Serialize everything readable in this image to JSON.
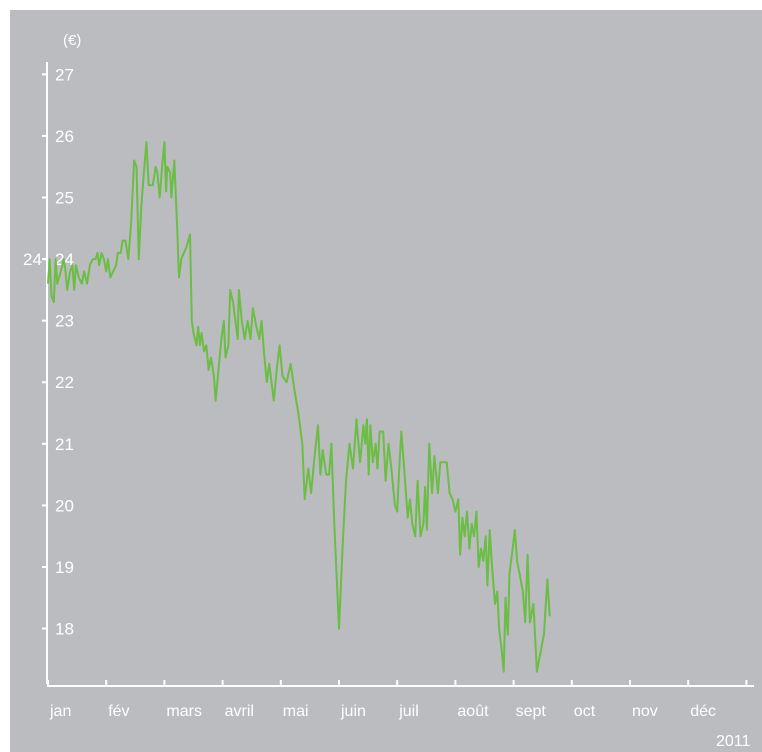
{
  "chart_data": {
    "type": "line",
    "ylabel": "(€)",
    "ylim": [
      17.1,
      27.2
    ],
    "yticks": [
      18,
      19,
      20,
      21,
      22,
      23,
      24,
      25,
      26,
      27
    ],
    "y_reference_label": "24",
    "x_categories": [
      "jan",
      "fév",
      "mars",
      "avril",
      "mai",
      "juin",
      "juil",
      "août",
      "sept",
      "oct",
      "nov",
      "déc"
    ],
    "year_label": "2011",
    "grid": false,
    "line_color": "#6cbd45",
    "background_color": "#bbbcc0",
    "series": [
      {
        "values": [
          [
            0.0,
            23.6
          ],
          [
            0.03,
            24.0
          ],
          [
            0.06,
            23.4
          ],
          [
            0.1,
            23.3
          ],
          [
            0.13,
            24.0
          ],
          [
            0.16,
            23.6
          ],
          [
            0.22,
            23.8
          ],
          [
            0.27,
            24.0
          ],
          [
            0.3,
            23.8
          ],
          [
            0.33,
            23.5
          ],
          [
            0.38,
            23.8
          ],
          [
            0.42,
            23.9
          ],
          [
            0.45,
            23.5
          ],
          [
            0.48,
            23.9
          ],
          [
            0.53,
            23.7
          ],
          [
            0.58,
            23.6
          ],
          [
            0.62,
            23.8
          ],
          [
            0.67,
            23.6
          ],
          [
            0.72,
            23.9
          ],
          [
            0.77,
            24.0
          ],
          [
            0.82,
            24.0
          ],
          [
            0.85,
            24.1
          ],
          [
            0.88,
            23.9
          ],
          [
            0.92,
            24.1
          ],
          [
            0.96,
            24.0
          ],
          [
            1.0,
            23.8
          ],
          [
            1.03,
            24.0
          ],
          [
            1.07,
            23.7
          ],
          [
            1.12,
            23.8
          ],
          [
            1.17,
            23.9
          ],
          [
            1.2,
            24.1
          ],
          [
            1.25,
            24.1
          ],
          [
            1.28,
            24.3
          ],
          [
            1.33,
            24.3
          ],
          [
            1.38,
            24.0
          ],
          [
            1.43,
            24.6
          ],
          [
            1.48,
            25.6
          ],
          [
            1.52,
            25.5
          ],
          [
            1.56,
            24.0
          ],
          [
            1.6,
            24.8
          ],
          [
            1.64,
            25.3
          ],
          [
            1.69,
            25.9
          ],
          [
            1.73,
            25.2
          ],
          [
            1.8,
            25.2
          ],
          [
            1.85,
            25.5
          ],
          [
            1.88,
            25.4
          ],
          [
            1.92,
            25.0
          ],
          [
            1.96,
            25.5
          ],
          [
            2.0,
            25.9
          ],
          [
            2.03,
            25.1
          ],
          [
            2.05,
            25.5
          ],
          [
            2.1,
            25.4
          ],
          [
            2.12,
            25.0
          ],
          [
            2.17,
            25.6
          ],
          [
            2.22,
            24.5
          ],
          [
            2.25,
            23.7
          ],
          [
            2.29,
            24.0
          ],
          [
            2.38,
            24.2
          ],
          [
            2.44,
            24.4
          ],
          [
            2.47,
            23.0
          ],
          [
            2.5,
            22.8
          ],
          [
            2.55,
            22.6
          ],
          [
            2.58,
            22.9
          ],
          [
            2.61,
            22.6
          ],
          [
            2.64,
            22.8
          ],
          [
            2.68,
            22.5
          ],
          [
            2.72,
            22.6
          ],
          [
            2.76,
            22.2
          ],
          [
            2.8,
            22.4
          ],
          [
            2.85,
            22.1
          ],
          [
            2.88,
            21.7
          ],
          [
            2.93,
            22.2
          ],
          [
            2.98,
            22.7
          ],
          [
            3.02,
            23.0
          ],
          [
            3.05,
            22.4
          ],
          [
            3.1,
            22.6
          ],
          [
            3.13,
            23.5
          ],
          [
            3.18,
            23.3
          ],
          [
            3.22,
            23.0
          ],
          [
            3.26,
            22.7
          ],
          [
            3.28,
            23.5
          ],
          [
            3.33,
            23.0
          ],
          [
            3.38,
            22.7
          ],
          [
            3.43,
            23.0
          ],
          [
            3.48,
            22.7
          ],
          [
            3.52,
            23.2
          ],
          [
            3.58,
            22.9
          ],
          [
            3.63,
            22.7
          ],
          [
            3.67,
            23.0
          ],
          [
            3.71,
            22.5
          ],
          [
            3.76,
            22.0
          ],
          [
            3.8,
            22.3
          ],
          [
            3.84,
            22.0
          ],
          [
            3.88,
            21.7
          ],
          [
            3.93,
            22.2
          ],
          [
            3.98,
            22.6
          ],
          [
            4.03,
            22.1
          ],
          [
            4.1,
            22.0
          ],
          [
            4.17,
            22.3
          ],
          [
            4.23,
            21.9
          ],
          [
            4.3,
            21.5
          ],
          [
            4.37,
            21.0
          ],
          [
            4.41,
            20.1
          ],
          [
            4.47,
            20.6
          ],
          [
            4.52,
            20.2
          ],
          [
            4.58,
            20.8
          ],
          [
            4.64,
            21.3
          ],
          [
            4.68,
            20.5
          ],
          [
            4.72,
            20.9
          ],
          [
            4.78,
            20.5
          ],
          [
            4.83,
            20.5
          ],
          [
            4.87,
            21.0
          ],
          [
            4.92,
            19.7
          ],
          [
            5.0,
            18.0
          ],
          [
            5.06,
            19.3
          ],
          [
            5.12,
            20.4
          ],
          [
            5.18,
            21.0
          ],
          [
            5.24,
            20.6
          ],
          [
            5.3,
            21.4
          ],
          [
            5.36,
            20.7
          ],
          [
            5.42,
            21.3
          ],
          [
            5.45,
            21.0
          ],
          [
            5.48,
            21.4
          ],
          [
            5.51,
            20.5
          ],
          [
            5.54,
            21.3
          ],
          [
            5.58,
            20.7
          ],
          [
            5.63,
            21.0
          ],
          [
            5.66,
            20.6
          ],
          [
            5.7,
            21.2
          ],
          [
            5.76,
            21.2
          ],
          [
            5.8,
            20.4
          ],
          [
            5.85,
            21.0
          ],
          [
            5.9,
            20.6
          ],
          [
            5.96,
            20.0
          ],
          [
            6.0,
            19.9
          ],
          [
            6.03,
            20.5
          ],
          [
            6.07,
            21.2
          ],
          [
            6.12,
            20.6
          ],
          [
            6.18,
            19.8
          ],
          [
            6.22,
            20.1
          ],
          [
            6.26,
            19.7
          ],
          [
            6.31,
            19.5
          ],
          [
            6.35,
            20.4
          ],
          [
            6.4,
            19.5
          ],
          [
            6.45,
            19.7
          ],
          [
            6.48,
            20.3
          ],
          [
            6.51,
            19.6
          ],
          [
            6.55,
            21.0
          ],
          [
            6.6,
            20.2
          ],
          [
            6.64,
            20.8
          ],
          [
            6.7,
            20.2
          ],
          [
            6.74,
            20.7
          ],
          [
            6.8,
            20.7
          ],
          [
            6.85,
            20.7
          ],
          [
            6.9,
            20.2
          ],
          [
            6.95,
            20.1
          ],
          [
            7.0,
            19.9
          ],
          [
            7.05,
            20.1
          ],
          [
            7.08,
            19.2
          ],
          [
            7.12,
            19.8
          ],
          [
            7.16,
            19.5
          ],
          [
            7.2,
            19.9
          ],
          [
            7.24,
            19.3
          ],
          [
            7.28,
            19.7
          ],
          [
            7.32,
            19.5
          ],
          [
            7.36,
            19.9
          ],
          [
            7.4,
            19.0
          ],
          [
            7.44,
            19.3
          ],
          [
            7.48,
            19.1
          ],
          [
            7.52,
            19.5
          ],
          [
            7.55,
            18.7
          ],
          [
            7.59,
            19.6
          ],
          [
            7.63,
            19.0
          ],
          [
            7.68,
            18.4
          ],
          [
            7.72,
            18.6
          ],
          [
            7.75,
            18.0
          ],
          [
            7.8,
            17.6
          ],
          [
            7.83,
            17.3
          ],
          [
            7.86,
            18.5
          ],
          [
            7.9,
            17.9
          ],
          [
            7.93,
            18.9
          ],
          [
            7.97,
            19.2
          ],
          [
            8.02,
            19.6
          ],
          [
            8.06,
            19.1
          ],
          [
            8.12,
            18.8
          ],
          [
            8.16,
            18.6
          ],
          [
            8.2,
            18.1
          ],
          [
            8.24,
            19.2
          ],
          [
            8.28,
            18.1
          ],
          [
            8.34,
            18.4
          ],
          [
            8.4,
            17.3
          ],
          [
            8.46,
            17.6
          ],
          [
            8.52,
            17.9
          ],
          [
            8.58,
            18.8
          ],
          [
            8.62,
            18.2
          ]
        ]
      }
    ]
  }
}
